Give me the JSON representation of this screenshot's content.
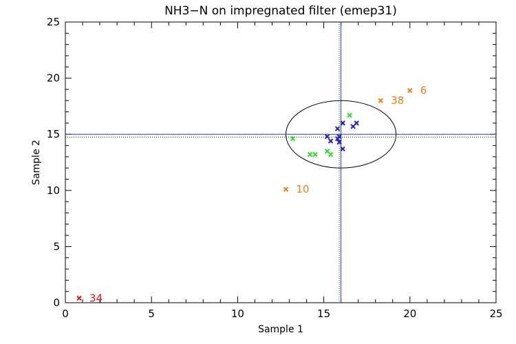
{
  "chart_data": {
    "type": "scatter",
    "title": "NH3−N on impregnated filter (emep31)",
    "xlabel": "Sample 1",
    "ylabel": "Sample 2",
    "xlim": [
      0,
      25
    ],
    "ylim": [
      0,
      25
    ],
    "xticks": [
      "0",
      "5",
      "10",
      "15",
      "20",
      "25"
    ],
    "yticks": [
      "0",
      "5",
      "10",
      "15",
      "20",
      "25"
    ],
    "grid": false,
    "reference_lines": {
      "solid": {
        "x": 16.0,
        "y": 15.0,
        "color": "#1f3fd1"
      },
      "dotted": {
        "x": 15.9,
        "y": 14.75,
        "color_x": "#1f3fd1",
        "color_y": "#000000"
      }
    },
    "ellipse": {
      "cx": 16.0,
      "cy": 15.0,
      "rx": 3.2,
      "ry": 3.0,
      "color": "#000000"
    },
    "colors": {
      "blue": "#1f1fd1",
      "green": "#22e022",
      "orange": "#f08010",
      "red": "#e01010"
    },
    "series": [
      {
        "color": "#1f1fd1",
        "points": [
          {
            "x": 15.2,
            "y": 14.8
          },
          {
            "x": 15.4,
            "y": 14.4
          },
          {
            "x": 15.8,
            "y": 15.5
          },
          {
            "x": 15.9,
            "y": 14.8
          },
          {
            "x": 15.9,
            "y": 14.3
          },
          {
            "x": 16.1,
            "y": 16.0
          },
          {
            "x": 16.1,
            "y": 13.7
          },
          {
            "x": 16.7,
            "y": 15.7
          },
          {
            "x": 16.9,
            "y": 16.0
          },
          {
            "x": 15.8,
            "y": 14.6
          }
        ]
      },
      {
        "color": "#22e022",
        "points": [
          {
            "x": 13.2,
            "y": 14.6
          },
          {
            "x": 14.2,
            "y": 13.2
          },
          {
            "x": 14.5,
            "y": 13.2
          },
          {
            "x": 15.2,
            "y": 13.5
          },
          {
            "x": 15.4,
            "y": 13.2
          },
          {
            "x": 16.5,
            "y": 16.7
          }
        ]
      },
      {
        "color": "#f08010",
        "points": [
          {
            "x": 12.8,
            "y": 10.1,
            "label": "10"
          },
          {
            "x": 18.3,
            "y": 18.0,
            "label": "38"
          },
          {
            "x": 20.0,
            "y": 18.9,
            "label": "6"
          }
        ]
      },
      {
        "color": "#e01010",
        "points": [
          {
            "x": 0.8,
            "y": 0.4,
            "label": "34"
          }
        ]
      }
    ]
  }
}
